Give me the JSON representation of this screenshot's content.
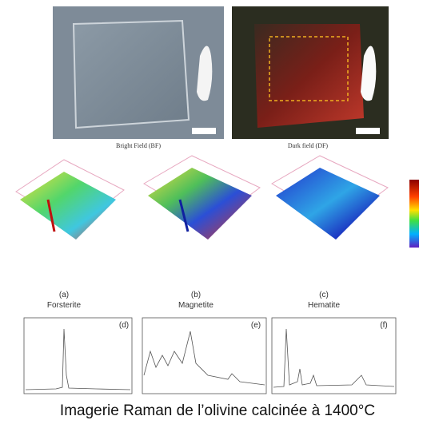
{
  "figure": {
    "images": [
      {
        "caption": "Bright Field (BF)"
      },
      {
        "caption": "Dark field (DF)"
      }
    ],
    "maps": [
      {
        "letter": "(a)",
        "name": "Forsterite"
      },
      {
        "letter": "(b)",
        "name": "Magnetite"
      },
      {
        "letter": "(c)",
        "name": "Hematite"
      }
    ],
    "spectra": [
      {
        "letter": "(d)"
      },
      {
        "letter": "(e)"
      },
      {
        "letter": "(f)"
      }
    ],
    "caption": "Imagerie Raman de l’olivine calcinée à 1400°C"
  }
}
